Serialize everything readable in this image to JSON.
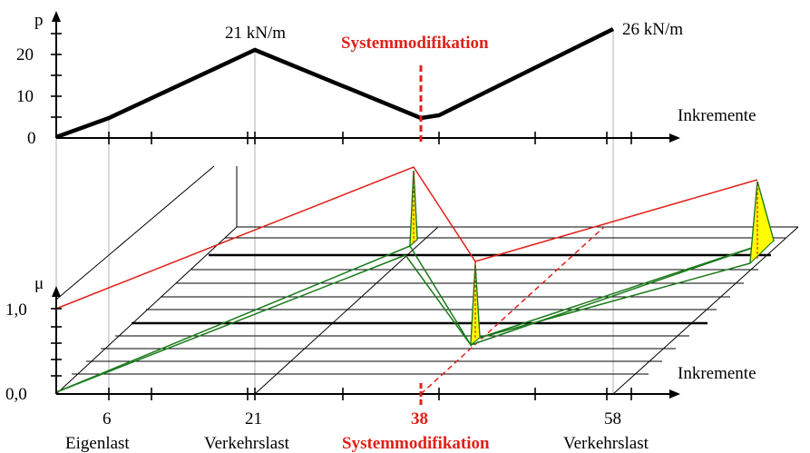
{
  "top_plot": {
    "y_axis_label": "p",
    "y_ticks": [
      "0",
      "10",
      "20"
    ],
    "x_axis_label": "Inkremente",
    "annotation_peak_1": "21 kN/m",
    "annotation_peak_2": "26 kN/m",
    "annotation_modification": "Systemmodifikation"
  },
  "bottom_plot": {
    "y_axis_label": "μ",
    "y_ticks": [
      "0,0",
      "1,0"
    ],
    "x_axis_label": "Inkremente",
    "x_values": [
      "6",
      "21",
      "38",
      "58"
    ],
    "x_captions": [
      "Eigenlast",
      "Verkehrslast",
      "Systemmodifikation",
      "Verkehrslast"
    ]
  },
  "colors": {
    "accent_red": "#e0201a",
    "line_green": "#1a7a1a",
    "fill_yellow": "#ffff00",
    "guide_gray": "#bdbdbd"
  }
}
